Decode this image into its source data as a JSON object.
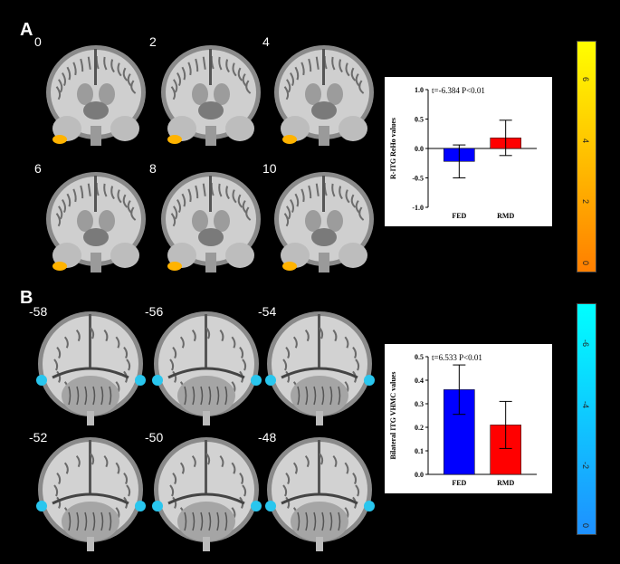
{
  "panels": {
    "A": {
      "letter": "A",
      "slices": [
        "0",
        "2",
        "4",
        "6",
        "8",
        "10"
      ],
      "blob_color": "#ffb300",
      "colorbar": {
        "min": "0",
        "ticks": [
          "0",
          "2",
          "4",
          "6"
        ],
        "gradient": [
          "#ff7f00",
          "#ffff00"
        ]
      },
      "chart_data": {
        "type": "bar",
        "annotation": "t=-6.384  P<0.01",
        "ylabel": "R-ITG ReHo values",
        "categories": [
          "FED",
          "RMD"
        ],
        "values": [
          -0.22,
          0.18
        ],
        "errors": [
          0.28,
          0.3
        ],
        "colors": [
          "#0000ff",
          "#ff0000"
        ],
        "ylim": [
          -1.0,
          1.0
        ],
        "yticks": [
          "-1.0",
          "-0.5",
          "0.0",
          "0.5",
          "1.0"
        ]
      }
    },
    "B": {
      "letter": "B",
      "slices": [
        "-58",
        "-56",
        "-54",
        "-52",
        "-50",
        "-48"
      ],
      "blob_color": "#29c6ee",
      "colorbar": {
        "ticks": [
          "0",
          "-2",
          "-4",
          "-6"
        ],
        "gradient": [
          "#1e90ff",
          "#00ffff"
        ]
      },
      "chart_data": {
        "type": "bar",
        "annotation": "t=6.533  P<0.01",
        "ylabel": "Bilateral ITG VHMC values",
        "categories": [
          "FED",
          "RMD"
        ],
        "values": [
          0.36,
          0.21
        ],
        "errors": [
          0.105,
          0.1
        ],
        "colors": [
          "#0000ff",
          "#ff0000"
        ],
        "ylim": [
          0.0,
          0.5
        ],
        "yticks": [
          "0.0",
          "0.1",
          "0.2",
          "0.3",
          "0.4",
          "0.5"
        ]
      }
    }
  }
}
